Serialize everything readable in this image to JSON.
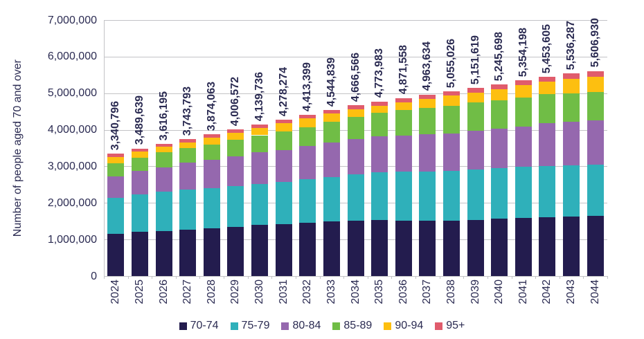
{
  "chart_data": {
    "type": "bar",
    "stacked": true,
    "title": "",
    "xlabel": "",
    "ylabel": "Number of people aged 70 and over",
    "ylim": [
      0,
      7000000
    ],
    "ytick_step": 1000000,
    "y_tick_labels": [
      "0",
      "1,000,000",
      "2,000,000",
      "3,000,000",
      "4,000,000",
      "5,000,000",
      "6,000,000",
      "7,000,000"
    ],
    "grid": "horizontal",
    "legend_position": "bottom",
    "categories": [
      "2024",
      "2025",
      "2026",
      "2027",
      "2028",
      "2029",
      "2030",
      "2031",
      "2032",
      "2033",
      "2034",
      "2035",
      "2036",
      "2037",
      "2038",
      "2039",
      "2040",
      "2041",
      "2042",
      "2043",
      "2044"
    ],
    "bar_totals": [
      3340796,
      3489639,
      3616195,
      3743793,
      3874063,
      4006572,
      4139736,
      4278274,
      4413399,
      4544839,
      4666566,
      4773983,
      4871558,
      4963634,
      5055026,
      5151619,
      5245698,
      5354198,
      5453605,
      5536287,
      5606930
    ],
    "bar_total_labels": [
      "3,340,796",
      "3,489,639",
      "3,616,195",
      "3,743,793",
      "3,874,063",
      "4,006,572",
      "4,139,736",
      "4,278,274",
      "4,413,399",
      "4,544,839",
      "4,666,566",
      "4,773,983",
      "4,871,558",
      "4,963,634",
      "5,055,026",
      "5,151,619",
      "5,245,698",
      "5,354,198",
      "5,453,605",
      "5,536,287",
      "5,606,930"
    ],
    "series": [
      {
        "name": "70-74",
        "color": "#231c4e",
        "values": [
          1160000,
          1205000,
          1235000,
          1262000,
          1300000,
          1340000,
          1392000,
          1425000,
          1458000,
          1488000,
          1512000,
          1528000,
          1515000,
          1505000,
          1512000,
          1535000,
          1568000,
          1590000,
          1612000,
          1635000,
          1640000
        ]
      },
      {
        "name": "75-79",
        "color": "#2fb0ba",
        "values": [
          970000,
          1035000,
          1075000,
          1098000,
          1110000,
          1122000,
          1118000,
          1145000,
          1182000,
          1222000,
          1263000,
          1302000,
          1340000,
          1357000,
          1363000,
          1383000,
          1392000,
          1390000,
          1388000,
          1385000,
          1400000
        ]
      },
      {
        "name": "80-84",
        "color": "#9568ae",
        "values": [
          600000,
          630000,
          660000,
          738000,
          762000,
          818000,
          870000,
          882000,
          912000,
          940000,
          965000,
          990000,
          980000,
          1018000,
          1030000,
          1062000,
          1072000,
          1110000,
          1180000,
          1190000,
          1210000
        ]
      },
      {
        "name": "85-89",
        "color": "#70bd46",
        "values": [
          350000,
          370000,
          408000,
          402000,
          430000,
          442000,
          470000,
          503000,
          513000,
          560000,
          608000,
          640000,
          713000,
          720000,
          755000,
          760000,
          778000,
          788000,
          790000,
          785000,
          780000
        ]
      },
      {
        "name": "90-94",
        "color": "#fdbf10",
        "values": [
          170000,
          162000,
          152000,
          158000,
          183000,
          192000,
          194000,
          224000,
          245000,
          227000,
          207000,
          200000,
          205000,
          242000,
          269000,
          282000,
          302000,
          338000,
          341000,
          395000,
          420000
        ]
      },
      {
        "name": "95+",
        "color": "#e05c6c",
        "values": [
          90796,
          87639,
          86195,
          85793,
          89063,
          92572,
          95736,
          99274,
          103399,
          107839,
          111566,
          113983,
          118558,
          121634,
          126026,
          129619,
          133698,
          138198,
          142605,
          146287,
          156930
        ]
      }
    ]
  },
  "colors": {
    "text": "#2b2b52",
    "gridline": "#c3c3c6",
    "background": "#ffffff"
  }
}
